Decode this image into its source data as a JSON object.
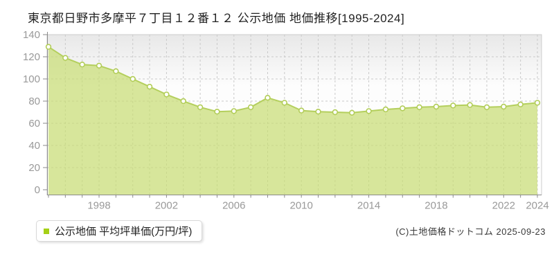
{
  "title": "東京都日野市多摩平７丁目１２番１２ 公示地価 地価推移[1995-2024]",
  "legend": {
    "label": "公示地価 平均坪単価(万円/坪)",
    "swatch_color": "#a5d016"
  },
  "copyright": "(C)土地価格ドットコム 2025-09-23",
  "chart_data": {
    "type": "area",
    "title": "東京都日野市多摩平７丁目１２番１２ 公示地価 地価推移[1995-2024]",
    "x": [
      1995,
      1996,
      1997,
      1998,
      1999,
      2000,
      2001,
      2002,
      2003,
      2004,
      2005,
      2006,
      2007,
      2008,
      2009,
      2010,
      2011,
      2012,
      2013,
      2014,
      2015,
      2016,
      2017,
      2018,
      2019,
      2020,
      2021,
      2022,
      2023,
      2024
    ],
    "series": [
      {
        "name": "公示地価 平均坪単価(万円/坪)",
        "values": [
          129,
          119,
          113,
          112,
          107,
          100,
          93,
          86,
          80,
          74.5,
          70.5,
          71,
          74.5,
          83,
          78.5,
          71.5,
          70.5,
          70,
          69.5,
          71,
          72.5,
          73.5,
          74.5,
          75,
          76,
          76.5,
          74.5,
          75,
          77,
          78.5
        ]
      }
    ],
    "xlabel": "",
    "ylabel": "万円/坪",
    "ylim": [
      0,
      140
    ],
    "ytick_labels": [
      "0",
      "20",
      "40",
      "60",
      "80",
      "100",
      "120",
      "140"
    ],
    "xtick_labels": [
      "1998",
      "2002",
      "2006",
      "2010",
      "2014",
      "2018",
      "2022",
      "2024"
    ],
    "grid": true,
    "legend_position": "bottom-left",
    "colors": {
      "area_fill": "#c8dd74",
      "area_opacity": 0.72,
      "line": "#b4cf5d",
      "marker_fill": "#ffffff",
      "marker_stroke": "#b2cd58",
      "grid": "#c9c9c9",
      "plot_border": "#cccccc",
      "axis": "#8a8a8a",
      "tick_label": "#999999",
      "plot_bg_top": "#e8e8e8",
      "background": "#ffffff"
    }
  }
}
